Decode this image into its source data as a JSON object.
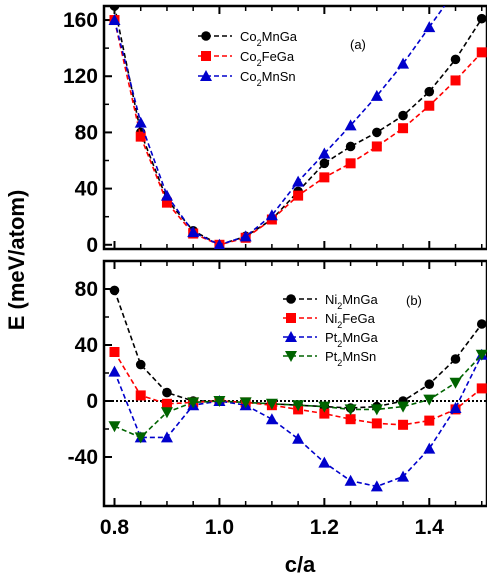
{
  "chart_data": [
    {
      "type": "line",
      "panel_label": "(a)",
      "x": [
        0.8,
        0.85,
        0.9,
        0.95,
        1.0,
        1.05,
        1.1,
        1.15,
        1.2,
        1.25,
        1.3,
        1.35,
        1.4,
        1.45,
        1.5
      ],
      "xlim": [
        0.78,
        1.51
      ],
      "ylim": [
        -3,
        170
      ],
      "yticks": [
        0,
        40,
        80,
        120,
        160
      ],
      "grid": false,
      "legend_position": "top-center",
      "series": [
        {
          "name": "Co2MnGa",
          "sub_parts": [
            "Co",
            "2",
            "MnGa"
          ],
          "color": "#000000",
          "marker": "circle",
          "values": [
            170,
            80,
            32,
            10,
            0,
            6,
            18,
            38,
            58,
            70,
            80,
            92,
            109,
            132,
            161
          ]
        },
        {
          "name": "Co2FeGa",
          "sub_parts": [
            "Co",
            "2",
            "FeGa"
          ],
          "color": "#ff0000",
          "marker": "square",
          "values": [
            160,
            77,
            30,
            8,
            0,
            5,
            18,
            35,
            48,
            58,
            70,
            83,
            99,
            117,
            137
          ]
        },
        {
          "name": "Co2MnSn",
          "sub_parts": [
            "Co",
            "2",
            "MnSn"
          ],
          "color": "#0000cc",
          "marker": "triangle-up",
          "values": [
            160,
            87,
            35,
            9,
            0,
            6,
            21,
            45,
            65,
            85,
            106,
            129,
            155,
            null,
            null
          ]
        }
      ]
    },
    {
      "type": "line",
      "panel_label": "(b)",
      "x": [
        0.8,
        0.85,
        0.9,
        0.95,
        1.0,
        1.05,
        1.1,
        1.15,
        1.2,
        1.25,
        1.3,
        1.35,
        1.4,
        1.45,
        1.5
      ],
      "xlim": [
        0.78,
        1.51
      ],
      "ylim": [
        -75,
        100
      ],
      "yticks": [
        -40,
        0,
        40,
        80
      ],
      "xticks": [
        0.8,
        1.0,
        1.2,
        1.4
      ],
      "xlabel": "c/a",
      "zero_line": true,
      "grid": false,
      "legend_position": "top-right",
      "series": [
        {
          "name": "Ni2MnGa",
          "sub_parts": [
            "Ni",
            "2",
            "MnGa"
          ],
          "color": "#000000",
          "marker": "circle",
          "values": [
            79,
            26,
            6,
            0,
            0,
            -1,
            -2,
            -3,
            -4,
            -5,
            -4,
            0,
            12,
            30,
            55
          ]
        },
        {
          "name": "Ni2FeGa",
          "sub_parts": [
            "Ni",
            "2",
            "FeGa"
          ],
          "color": "#ff0000",
          "marker": "square",
          "values": [
            35,
            4,
            -2,
            -1,
            0,
            -1,
            -3,
            -6,
            -9,
            -13,
            -16,
            -17,
            -14,
            -6,
            9
          ]
        },
        {
          "name": "Pt2MnGa",
          "sub_parts": [
            "Pt",
            "2",
            "MnGa"
          ],
          "color": "#0000cc",
          "marker": "triangle-up",
          "values": [
            21,
            -26,
            -26,
            -3,
            0,
            -3,
            -13,
            -27,
            -44,
            -57,
            -61,
            -54,
            -34,
            -5,
            33
          ]
        },
        {
          "name": "Pt2MnSn",
          "sub_parts": [
            "Pt",
            "2",
            "MnSn"
          ],
          "color": "#006400",
          "marker": "triangle-down",
          "values": [
            -18,
            -26,
            -8,
            -1,
            0,
            -1,
            -2,
            -3,
            -4,
            -6,
            -6,
            -4,
            1,
            13,
            33
          ]
        }
      ]
    }
  ],
  "ylabel": "E (meV/atom)"
}
